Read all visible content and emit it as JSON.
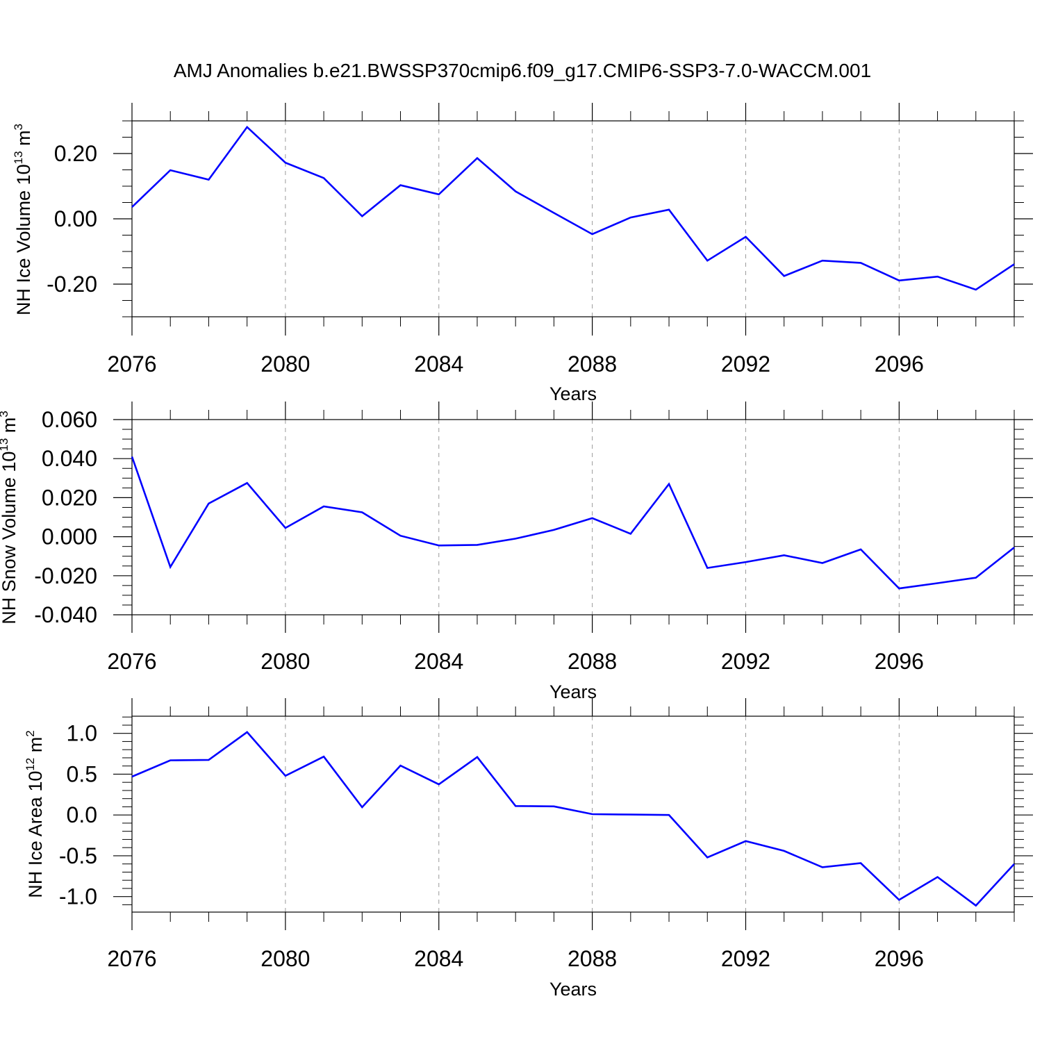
{
  "title": "AMJ Anomalies b.e21.BWSSP370cmip6.f09_g17.CMIP6-SSP3-7.0-WACCM.001",
  "colors": {
    "line": "#0000ff",
    "axes": "#000000",
    "grid": "#9a9a9a"
  },
  "chart_data": [
    {
      "type": "line",
      "ylabel": "NH Ice Volume 10",
      "ylabel_exp": "13",
      "ylabel_unit": " m",
      "ylabel_unit_exp": "3",
      "xlabel": "Years",
      "xlim": [
        2076,
        2099
      ],
      "ylim": [
        -0.3,
        0.3
      ],
      "x_ticks": [
        2076,
        2080,
        2084,
        2088,
        2092,
        2096
      ],
      "x_tick_labels": [
        "2076",
        "2080",
        "2084",
        "2088",
        "2092",
        "2096"
      ],
      "x_grid": [
        2080,
        2084,
        2088,
        2092,
        2096
      ],
      "y_ticks": [
        -0.2,
        0.0,
        0.2
      ],
      "y_tick_labels": [
        "-0.20",
        "0.00",
        "0.20"
      ],
      "y_minor_step": 0.05,
      "series": [
        {
          "name": "NH Ice Volume",
          "x": [
            2076,
            2077,
            2078,
            2079,
            2080,
            2081,
            2082,
            2083,
            2084,
            2085,
            2086,
            2087,
            2088,
            2089,
            2090,
            2091,
            2092,
            2093,
            2094,
            2095,
            2096,
            2097,
            2098,
            2099
          ],
          "values": [
            0.036,
            0.149,
            0.12,
            0.281,
            0.172,
            0.125,
            0.008,
            0.103,
            0.075,
            0.186,
            0.084,
            0.018,
            -0.047,
            0.004,
            0.028,
            -0.128,
            -0.055,
            -0.175,
            -0.128,
            -0.135,
            -0.189,
            -0.177,
            -0.217,
            -0.139
          ]
        }
      ]
    },
    {
      "type": "line",
      "ylabel": "NH Snow Volume 10",
      "ylabel_exp": "13",
      "ylabel_unit": " m",
      "ylabel_unit_exp": "3",
      "xlabel": "Years",
      "xlim": [
        2076,
        2099
      ],
      "ylim": [
        -0.04,
        0.06
      ],
      "x_ticks": [
        2076,
        2080,
        2084,
        2088,
        2092,
        2096
      ],
      "x_tick_labels": [
        "2076",
        "2080",
        "2084",
        "2088",
        "2092",
        "2096"
      ],
      "x_grid": [
        2080,
        2084,
        2088,
        2092,
        2096
      ],
      "y_ticks": [
        -0.04,
        -0.02,
        0.0,
        0.02,
        0.04,
        0.06
      ],
      "y_tick_labels": [
        "-0.040",
        "-0.020",
        "0.000",
        "0.020",
        "0.040",
        "0.060"
      ],
      "y_minor_step": 0.005,
      "series": [
        {
          "name": "NH Snow Volume",
          "x": [
            2076,
            2077,
            2078,
            2079,
            2080,
            2081,
            2082,
            2083,
            2084,
            2085,
            2086,
            2087,
            2088,
            2089,
            2090,
            2091,
            2092,
            2093,
            2094,
            2095,
            2096,
            2097,
            2098,
            2099
          ],
          "values": [
            0.041,
            -0.0155,
            0.017,
            0.0275,
            0.0045,
            0.0155,
            0.0125,
            0.0005,
            -0.0045,
            -0.0042,
            -0.001,
            0.0035,
            0.0095,
            0.0015,
            0.027,
            -0.016,
            -0.013,
            -0.0095,
            -0.0135,
            -0.0065,
            -0.0265,
            -0.0238,
            -0.021,
            -0.0055
          ]
        }
      ]
    },
    {
      "type": "line",
      "ylabel": "NH Ice Area 10",
      "ylabel_exp": "12",
      "ylabel_unit": " m",
      "ylabel_unit_exp": "2",
      "xlabel": "Years",
      "xlim": [
        2076,
        2099
      ],
      "ylim": [
        -1.19,
        1.21
      ],
      "x_ticks": [
        2076,
        2080,
        2084,
        2088,
        2092,
        2096
      ],
      "x_tick_labels": [
        "2076",
        "2080",
        "2084",
        "2088",
        "2092",
        "2096"
      ],
      "x_grid": [
        2080,
        2084,
        2088,
        2092,
        2096
      ],
      "y_ticks": [
        -1.0,
        -0.5,
        0.0,
        0.5,
        1.0
      ],
      "y_tick_labels": [
        "-1.0",
        "-0.5",
        "0.0",
        "0.5",
        "1.0"
      ],
      "y_minor_step": 0.1,
      "series": [
        {
          "name": "NH Ice Area",
          "x": [
            2076,
            2077,
            2078,
            2079,
            2080,
            2081,
            2082,
            2083,
            2084,
            2085,
            2086,
            2087,
            2088,
            2089,
            2090,
            2091,
            2092,
            2093,
            2094,
            2095,
            2096,
            2097,
            2098,
            2099
          ],
          "values": [
            0.47,
            0.67,
            0.675,
            1.015,
            0.48,
            0.715,
            0.095,
            0.605,
            0.375,
            0.71,
            0.11,
            0.105,
            0.01,
            0.005,
            0.0,
            -0.52,
            -0.32,
            -0.44,
            -0.64,
            -0.59,
            -1.04,
            -0.76,
            -1.11,
            -0.6
          ]
        }
      ]
    }
  ]
}
